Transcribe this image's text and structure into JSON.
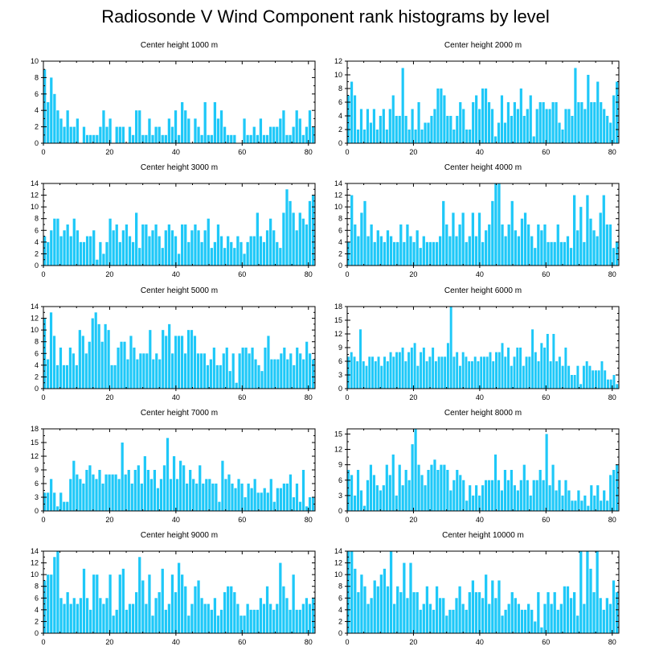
{
  "title": "Radiosonde V Wind Component rank histograms by level",
  "bar_color": "#1ec8f8",
  "chart_data": [
    {
      "type": "bar",
      "title": "Center height 1000 m",
      "xlim": [
        0,
        82
      ],
      "ylim": [
        0,
        10
      ],
      "yticks": [
        0,
        2,
        4,
        6,
        8,
        10
      ],
      "xticks": [
        0,
        20,
        40,
        60,
        80
      ],
      "values": [
        9,
        5,
        8,
        6,
        4,
        3,
        2,
        4,
        2,
        2,
        3,
        0,
        2,
        1,
        1,
        1,
        1,
        2,
        4,
        2,
        3,
        0,
        2,
        2,
        2,
        0,
        2,
        1,
        4,
        4,
        1,
        1,
        3,
        1,
        2,
        2,
        1,
        1,
        3,
        2,
        4,
        1,
        5,
        4,
        3,
        0,
        3,
        2,
        1,
        5,
        1,
        1,
        5,
        3,
        4,
        2,
        1,
        1,
        1,
        0,
        0,
        3,
        1,
        1,
        2,
        1,
        3,
        1,
        1,
        2,
        2,
        2,
        3,
        4,
        1,
        1,
        2,
        4,
        3,
        1,
        2,
        4,
        2
      ]
    },
    {
      "type": "bar",
      "title": "Center height 2000 m",
      "xlim": [
        0,
        82
      ],
      "ylim": [
        0,
        12
      ],
      "yticks": [
        0,
        2,
        4,
        6,
        8,
        10,
        12
      ],
      "xticks": [
        0,
        20,
        40,
        60,
        80
      ],
      "values": [
        7,
        9,
        7,
        2,
        5,
        2,
        5,
        3,
        5,
        2,
        4,
        5,
        2,
        5,
        7,
        4,
        4,
        11,
        4,
        2,
        5,
        2,
        6,
        2,
        3,
        3,
        4,
        5,
        8,
        8,
        7,
        4,
        4,
        2,
        4,
        6,
        5,
        2,
        2,
        6,
        7,
        5,
        8,
        8,
        6,
        5,
        1,
        3,
        7,
        3,
        6,
        4,
        6,
        5,
        8,
        4,
        5,
        7,
        1,
        5,
        6,
        6,
        5,
        5,
        6,
        6,
        3,
        2,
        5,
        5,
        4,
        11,
        6,
        6,
        5,
        10,
        6,
        6,
        9,
        6,
        5,
        4,
        3,
        7,
        9
      ]
    },
    {
      "type": "bar",
      "title": "Center height 3000 m",
      "xlim": [
        0,
        82
      ],
      "ylim": [
        0,
        14
      ],
      "yticks": [
        0,
        2,
        4,
        6,
        8,
        10,
        12,
        14
      ],
      "xticks": [
        0,
        20,
        40,
        60,
        80
      ],
      "values": [
        5,
        4,
        6,
        8,
        8,
        5,
        6,
        7,
        5,
        8,
        6,
        4,
        4,
        5,
        5,
        6,
        1,
        4,
        2,
        4,
        8,
        6,
        7,
        4,
        6,
        7,
        5,
        4,
        9,
        3,
        7,
        7,
        5,
        6,
        7,
        5,
        3,
        6,
        7,
        6,
        5,
        2,
        7,
        7,
        4,
        6,
        7,
        6,
        4,
        6,
        8,
        3,
        4,
        7,
        5,
        3,
        5,
        4,
        3,
        5,
        4,
        2,
        4,
        5,
        5,
        9,
        5,
        4,
        6,
        8,
        6,
        4,
        3,
        9,
        13,
        11,
        9,
        6,
        9,
        8,
        7,
        11,
        12
      ]
    },
    {
      "type": "bar",
      "title": "Center height 4000 m",
      "xlim": [
        0,
        82
      ],
      "ylim": [
        0,
        14
      ],
      "yticks": [
        0,
        2,
        4,
        6,
        8,
        10,
        12,
        14
      ],
      "xticks": [
        0,
        20,
        40,
        60,
        80
      ],
      "values": [
        4,
        12,
        7,
        5,
        9,
        11,
        5,
        7,
        4,
        6,
        5,
        4,
        6,
        5,
        4,
        4,
        7,
        4,
        7,
        5,
        4,
        6,
        3,
        5,
        4,
        4,
        4,
        4,
        5,
        11,
        7,
        5,
        9,
        5,
        7,
        9,
        4,
        5,
        9,
        5,
        9,
        4,
        6,
        7,
        11,
        14,
        14,
        7,
        5,
        7,
        11,
        6,
        5,
        8,
        9,
        7,
        5,
        3,
        7,
        6,
        7,
        4,
        4,
        4,
        7,
        4,
        4,
        5,
        3,
        12,
        6,
        10,
        4,
        12,
        8,
        6,
        5,
        9,
        12,
        7,
        7,
        3,
        4
      ]
    },
    {
      "type": "bar",
      "title": "Center height 5000 m",
      "xlim": [
        0,
        82
      ],
      "ylim": [
        0,
        14
      ],
      "yticks": [
        0,
        2,
        4,
        6,
        8,
        10,
        12,
        14
      ],
      "xticks": [
        0,
        20,
        40,
        60,
        80
      ],
      "values": [
        12,
        5,
        13,
        9,
        4,
        7,
        4,
        4,
        7,
        6,
        4,
        10,
        9,
        6,
        8,
        12,
        13,
        11,
        8,
        11,
        10,
        4,
        4,
        7,
        8,
        8,
        5,
        9,
        7,
        5,
        6,
        6,
        6,
        10,
        5,
        6,
        5,
        10,
        9,
        11,
        6,
        9,
        9,
        9,
        6,
        10,
        10,
        9,
        6,
        6,
        6,
        4,
        5,
        7,
        4,
        4,
        6,
        7,
        3,
        6,
        1,
        6,
        7,
        7,
        6,
        7,
        5,
        4,
        3,
        7,
        9,
        5,
        5,
        5,
        6,
        7,
        5,
        6,
        4,
        7,
        6,
        5,
        8,
        6,
        5
      ]
    },
    {
      "type": "bar",
      "title": "Center height 6000 m",
      "xlim": [
        0,
        82
      ],
      "ylim": [
        0,
        18
      ],
      "yticks": [
        0,
        3,
        6,
        9,
        12,
        15,
        18
      ],
      "xticks": [
        0,
        20,
        40,
        60,
        80
      ],
      "values": [
        7,
        8,
        7,
        6,
        13,
        6,
        5,
        7,
        7,
        6,
        7,
        5,
        7,
        6,
        8,
        7,
        8,
        8,
        9,
        6,
        8,
        9,
        10,
        5,
        8,
        9,
        6,
        7,
        9,
        6,
        7,
        7,
        7,
        10,
        18,
        7,
        8,
        5,
        8,
        7,
        6,
        6,
        7,
        6,
        7,
        7,
        7,
        8,
        6,
        8,
        8,
        10,
        7,
        9,
        5,
        7,
        9,
        9,
        5,
        7,
        7,
        13,
        8,
        6,
        10,
        9,
        12,
        6,
        12,
        6,
        7,
        5,
        9,
        5,
        3,
        3,
        5,
        1,
        5,
        6,
        5,
        4,
        4,
        4,
        6,
        4,
        2,
        2,
        3,
        1
      ]
    },
    {
      "type": "bar",
      "title": "Center height 7000 m",
      "xlim": [
        0,
        82
      ],
      "ylim": [
        0,
        18
      ],
      "yticks": [
        0,
        3,
        6,
        9,
        12,
        15,
        18
      ],
      "xticks": [
        0,
        20,
        40,
        60,
        80
      ],
      "values": [
        4,
        4,
        7,
        4,
        1,
        4,
        2,
        2,
        7,
        11,
        8,
        7,
        6,
        9,
        10,
        8,
        7,
        9,
        6,
        8,
        8,
        8,
        8,
        7,
        15,
        8,
        9,
        6,
        9,
        10,
        6,
        12,
        9,
        7,
        9,
        5,
        7,
        10,
        16,
        7,
        12,
        7,
        11,
        10,
        6,
        9,
        7,
        6,
        10,
        6,
        7,
        7,
        6,
        6,
        2,
        11,
        7,
        8,
        6,
        5,
        7,
        6,
        3,
        6,
        5,
        7,
        4,
        4,
        5,
        4,
        7,
        2,
        5,
        5,
        6,
        6,
        8,
        3,
        6,
        2,
        9,
        1,
        3,
        3
      ]
    },
    {
      "type": "bar",
      "title": "Center height 8000 m",
      "xlim": [
        0,
        82
      ],
      "ylim": [
        0,
        16
      ],
      "yticks": [
        0,
        3,
        6,
        9,
        12,
        15
      ],
      "xticks": [
        0,
        20,
        40,
        60,
        80
      ],
      "values": [
        8,
        7,
        3,
        8,
        4,
        1,
        6,
        9,
        7,
        5,
        4,
        5,
        9,
        7,
        11,
        3,
        9,
        5,
        8,
        6,
        13,
        16,
        9,
        7,
        5,
        8,
        9,
        10,
        8,
        9,
        9,
        8,
        4,
        6,
        8,
        7,
        6,
        2,
        5,
        3,
        5,
        3,
        5,
        6,
        6,
        6,
        11,
        6,
        4,
        8,
        6,
        8,
        5,
        4,
        6,
        9,
        6,
        3,
        6,
        6,
        8,
        6,
        15,
        5,
        9,
        4,
        6,
        3,
        6,
        4,
        2,
        2,
        4,
        2,
        3,
        1,
        5,
        3,
        5,
        2,
        4,
        2,
        7,
        8,
        9
      ]
    },
    {
      "type": "bar",
      "title": "Center height 9000 m",
      "xlim": [
        0,
        82
      ],
      "ylim": [
        0,
        14
      ],
      "yticks": [
        0,
        2,
        4,
        6,
        8,
        10,
        12,
        14
      ],
      "xticks": [
        0,
        20,
        40,
        60,
        80
      ],
      "values": [
        9,
        10,
        10,
        13,
        14,
        6,
        5,
        7,
        5,
        6,
        5,
        6,
        11,
        6,
        4,
        10,
        10,
        6,
        5,
        6,
        10,
        3,
        4,
        10,
        11,
        4,
        5,
        5,
        7,
        13,
        9,
        5,
        10,
        3,
        6,
        7,
        11,
        4,
        5,
        10,
        7,
        12,
        10,
        8,
        3,
        5,
        8,
        9,
        6,
        5,
        5,
        4,
        6,
        3,
        4,
        7,
        8,
        8,
        7,
        5,
        3,
        3,
        5,
        4,
        4,
        4,
        6,
        5,
        8,
        5,
        4,
        5,
        12,
        8,
        6,
        4,
        10,
        4,
        4,
        5,
        6,
        5,
        6
      ]
    },
    {
      "type": "bar",
      "title": "Center height 10000 m",
      "xlim": [
        0,
        82
      ],
      "ylim": [
        0,
        14
      ],
      "yticks": [
        0,
        2,
        4,
        6,
        8,
        10,
        12,
        14
      ],
      "xticks": [
        0,
        20,
        40,
        60,
        80
      ],
      "values": [
        14,
        14,
        11,
        7,
        10,
        8,
        5,
        6,
        9,
        8,
        10,
        11,
        8,
        14,
        5,
        8,
        7,
        12,
        6,
        12,
        7,
        7,
        4,
        5,
        8,
        5,
        4,
        8,
        6,
        6,
        3,
        4,
        4,
        6,
        8,
        5,
        4,
        7,
        9,
        7,
        7,
        6,
        10,
        5,
        9,
        6,
        9,
        3,
        4,
        5,
        7,
        6,
        5,
        4,
        4,
        5,
        4,
        2,
        7,
        1,
        5,
        7,
        5,
        7,
        4,
        5,
        8,
        8,
        6,
        7,
        3,
        14,
        5,
        14,
        11,
        7,
        14,
        6,
        4,
        6,
        5,
        9,
        7
      ]
    }
  ]
}
